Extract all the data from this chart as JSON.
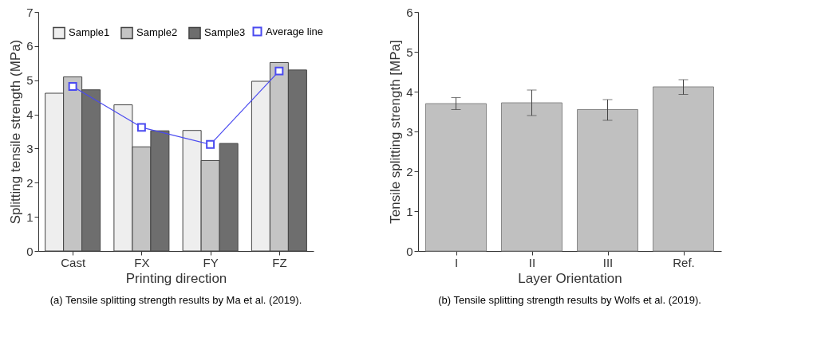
{
  "chart_data": [
    {
      "type": "bar",
      "title": "(a) Tensile splitting strength results by Ma et al. (2019).",
      "xlabel": "Printing direction",
      "ylabel": "Splitting tensile strength (MPa)",
      "categories": [
        "Cast",
        "FX",
        "FY",
        "FZ"
      ],
      "ylim": [
        0,
        7
      ],
      "yticks": [
        0,
        1,
        2,
        3,
        4,
        5,
        6,
        7
      ],
      "grid": false,
      "legend": "top left",
      "series": [
        {
          "name": "Sample1",
          "color": "#eeeeee",
          "values": [
            4.62,
            4.28,
            3.53,
            4.97
          ]
        },
        {
          "name": "Sample2",
          "color": "#c4c4c4",
          "values": [
            5.1,
            3.05,
            2.65,
            5.52
          ]
        },
        {
          "name": "Sample3",
          "color": "#6e6e6e",
          "values": [
            4.72,
            3.52,
            3.15,
            5.3
          ]
        },
        {
          "name": "Average line",
          "type": "line",
          "color": "#4a4af0",
          "marker": "square",
          "values": [
            4.82,
            3.62,
            3.12,
            5.27
          ]
        }
      ]
    },
    {
      "type": "bar",
      "title": "(b) Tensile splitting strength results by Wolfs et al. (2019).",
      "xlabel": "Layer Orientation",
      "ylabel": "Tensile splitting strength [MPa]",
      "categories": [
        "I",
        "II",
        "III",
        "Ref."
      ],
      "ylim": [
        0,
        6
      ],
      "yticks": [
        0,
        1,
        2,
        3,
        4,
        5,
        6
      ],
      "grid": false,
      "legend": false,
      "series": [
        {
          "color": "#c0c0c0",
          "values": [
            3.7,
            3.72,
            3.55,
            4.12
          ],
          "errors": [
            [
              3.55,
              3.85
            ],
            [
              3.4,
              4.04
            ],
            [
              3.28,
              3.8
            ],
            [
              3.93,
              4.3
            ]
          ]
        }
      ]
    }
  ]
}
